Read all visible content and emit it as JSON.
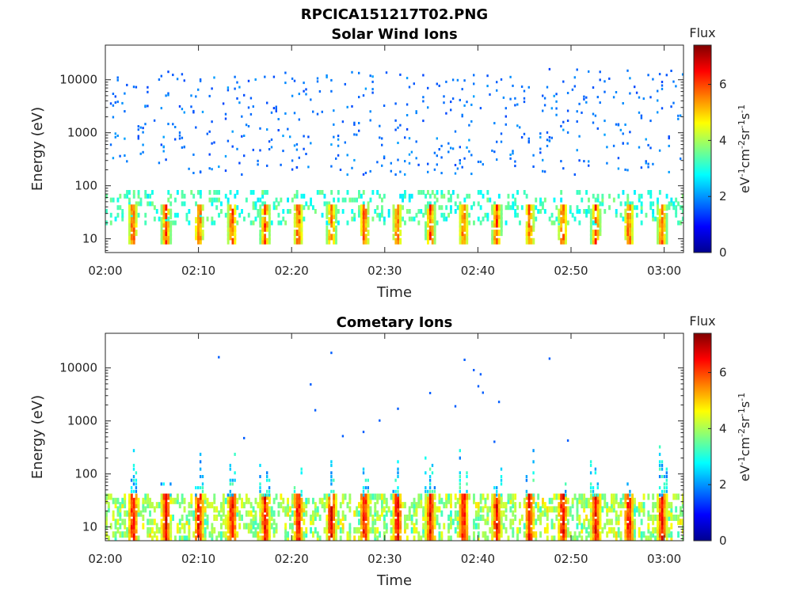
{
  "figure_title": "RPCICA151217T02.PNG",
  "colors": {
    "colormap": [
      "#00008f",
      "#0000ff",
      "#0080ff",
      "#00ffff",
      "#80ff80",
      "#ffff00",
      "#ff8000",
      "#ff0000",
      "#800000"
    ]
  },
  "chart_data": [
    {
      "type": "heatmap",
      "title": "Solar Wind Ions",
      "xlabel": "Time",
      "ylabel": "Energy (eV)",
      "x_ticks": [
        "02:00",
        "02:10",
        "02:20",
        "02:30",
        "02:40",
        "02:50",
        "03:00"
      ],
      "y_ticks": [
        "10",
        "100",
        "1000",
        "10000"
      ],
      "y_scale": "log",
      "ylim": [
        5.5,
        45000
      ],
      "colorbar": {
        "title": "Flux",
        "label": "eV-1cm-2sr-1s-1",
        "label_parts": [
          "eV",
          "-1",
          "cm",
          "-2",
          "sr",
          "-1",
          "s",
          "-1"
        ],
        "ticks": [
          "0",
          "2",
          "4",
          "6"
        ],
        "range": [
          0,
          7.4
        ]
      },
      "description_of_data": "scattered blue counts (flux ~1.5-2) from ~150 eV to ~15000 eV; cyan/green band 20-80 eV; yellow-red bursts at 10-40 eV recurring about every 3.5 minutes"
    },
    {
      "type": "heatmap",
      "title": "Cometary Ions",
      "xlabel": "Time",
      "ylabel": "Energy (eV)",
      "x_ticks": [
        "02:00",
        "02:10",
        "02:20",
        "02:30",
        "02:40",
        "02:50",
        "03:00"
      ],
      "y_ticks": [
        "10",
        "100",
        "1000",
        "10000"
      ],
      "y_scale": "log",
      "ylim": [
        5.5,
        45000
      ],
      "colorbar": {
        "title": "Flux",
        "label": "eV-1cm-2sr-1s-1",
        "label_parts": [
          "eV",
          "-1",
          "cm",
          "-2",
          "sr",
          "-1",
          "s",
          "-1"
        ],
        "ticks": [
          "0",
          "2",
          "4",
          "6"
        ],
        "range": [
          0,
          7.4
        ]
      },
      "description_of_data": "intense red/orange bursts (flux 6-7) between 6 and 40 eV recurring about every 3.5 minutes, with cyan/blue plumes rising to ~300 eV and a few isolated blue points up to ~20000 eV"
    }
  ]
}
